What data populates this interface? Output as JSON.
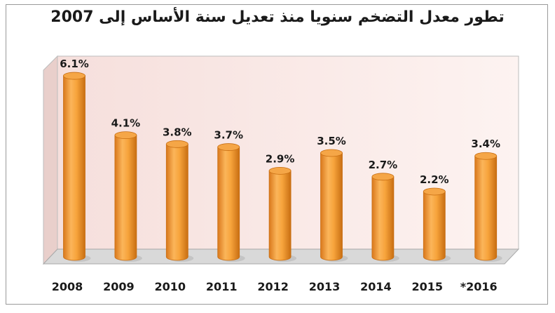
{
  "chart_data": {
    "type": "bar",
    "title": "تطور معدل التضخم سنويا منذ تعديل سنة الأساس إلى 2007",
    "categories": [
      "2008",
      "2009",
      "2010",
      "2011",
      "2012",
      "2013",
      "2014",
      "2015",
      "*2016"
    ],
    "values": [
      6.1,
      4.1,
      3.8,
      3.7,
      2.9,
      3.5,
      2.7,
      2.2,
      3.4
    ],
    "value_labels": [
      "6.1%",
      "4.1%",
      "3.8%",
      "3.7%",
      "2.9%",
      "3.5%",
      "2.7%",
      "2.2%",
      "3.4%"
    ],
    "xlabel": "",
    "ylabel": "",
    "ylim": [
      0,
      7
    ],
    "grid": false,
    "bar_color": "#f7a43c",
    "bar_edge_color": "#c86e12",
    "wall_color": "#fbecea",
    "floor_color": "#d9d9d9"
  }
}
